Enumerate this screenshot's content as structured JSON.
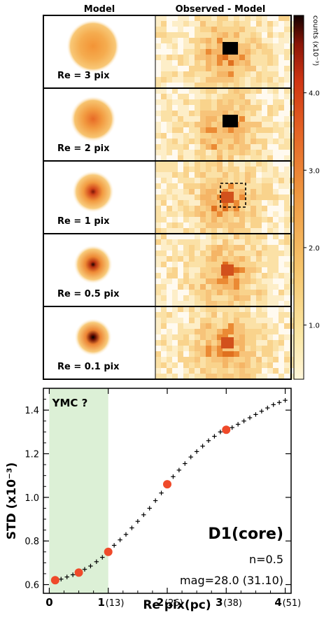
{
  "headers": {
    "left": "Model",
    "right": "Observed - Model"
  },
  "colorbar": {
    "label": "counts (x10⁻³)",
    "ticks": [
      {
        "value": 4.0,
        "label": "4.0"
      },
      {
        "value": 3.0,
        "label": "3.0"
      },
      {
        "value": 2.0,
        "label": "2.0"
      },
      {
        "value": 1.0,
        "label": "1.0"
      }
    ],
    "range": [
      0.3,
      5.0
    ]
  },
  "panels": [
    {
      "label": "Re = 3 pix",
      "re": 3
    },
    {
      "label": "Re = 2 pix",
      "re": 2
    },
    {
      "label": "Re = 1 pix",
      "re": 1,
      "highlight_box": true
    },
    {
      "label": "Re = 0.5 pix",
      "re": 0.5
    },
    {
      "label": "Re = 0.1 pix",
      "re": 0.1
    }
  ],
  "chart_data": {
    "type": "scatter",
    "xlabel": "Re pix(pc)",
    "ylabel": "STD (x10⁻³)",
    "xlim": [
      -0.1,
      4.1
    ],
    "ylim": [
      0.56,
      1.5
    ],
    "x_ticks": [
      {
        "value": 0,
        "label": "0",
        "sub": ""
      },
      {
        "value": 1,
        "label": "1",
        "sub": "(13)"
      },
      {
        "value": 2,
        "label": "2",
        "sub": "(26)"
      },
      {
        "value": 3,
        "label": "3",
        "sub": "(38)"
      },
      {
        "value": 4,
        "label": "4",
        "sub": "(51)"
      }
    ],
    "y_ticks": [
      0.6,
      0.8,
      1.0,
      1.2,
      1.4
    ],
    "y_tick_labels": [
      "0.6",
      "0.8",
      "1.0",
      "1.2",
      "1.4"
    ],
    "shaded_region": {
      "x": [
        0,
        1
      ],
      "label": "YMC ?"
    },
    "curve": {
      "x": [
        0.1,
        0.2,
        0.3,
        0.4,
        0.5,
        0.6,
        0.7,
        0.8,
        0.9,
        1.0,
        1.1,
        1.2,
        1.3,
        1.4,
        1.5,
        1.6,
        1.7,
        1.8,
        1.9,
        2.0,
        2.1,
        2.2,
        2.3,
        2.4,
        2.5,
        2.6,
        2.7,
        2.8,
        2.9,
        3.0,
        3.1,
        3.2,
        3.3,
        3.4,
        3.5,
        3.6,
        3.7,
        3.8,
        3.9,
        4.0
      ],
      "y": [
        0.62,
        0.625,
        0.635,
        0.645,
        0.655,
        0.67,
        0.685,
        0.705,
        0.725,
        0.75,
        0.78,
        0.805,
        0.83,
        0.86,
        0.89,
        0.92,
        0.95,
        0.985,
        1.02,
        1.06,
        1.095,
        1.125,
        1.155,
        1.185,
        1.21,
        1.235,
        1.26,
        1.28,
        1.3,
        1.31,
        1.32,
        1.335,
        1.35,
        1.365,
        1.38,
        1.395,
        1.41,
        1.425,
        1.435,
        1.445
      ]
    },
    "highlight_points": {
      "x": [
        0.1,
        0.5,
        1.0,
        2.0,
        3.0
      ],
      "y": [
        0.62,
        0.655,
        0.75,
        1.06,
        1.31
      ],
      "color": "#ef4a2a"
    },
    "annotations": {
      "name": "D1(core)",
      "n": "n=0.5",
      "mag": "mag=28.0 (31.10)"
    }
  }
}
